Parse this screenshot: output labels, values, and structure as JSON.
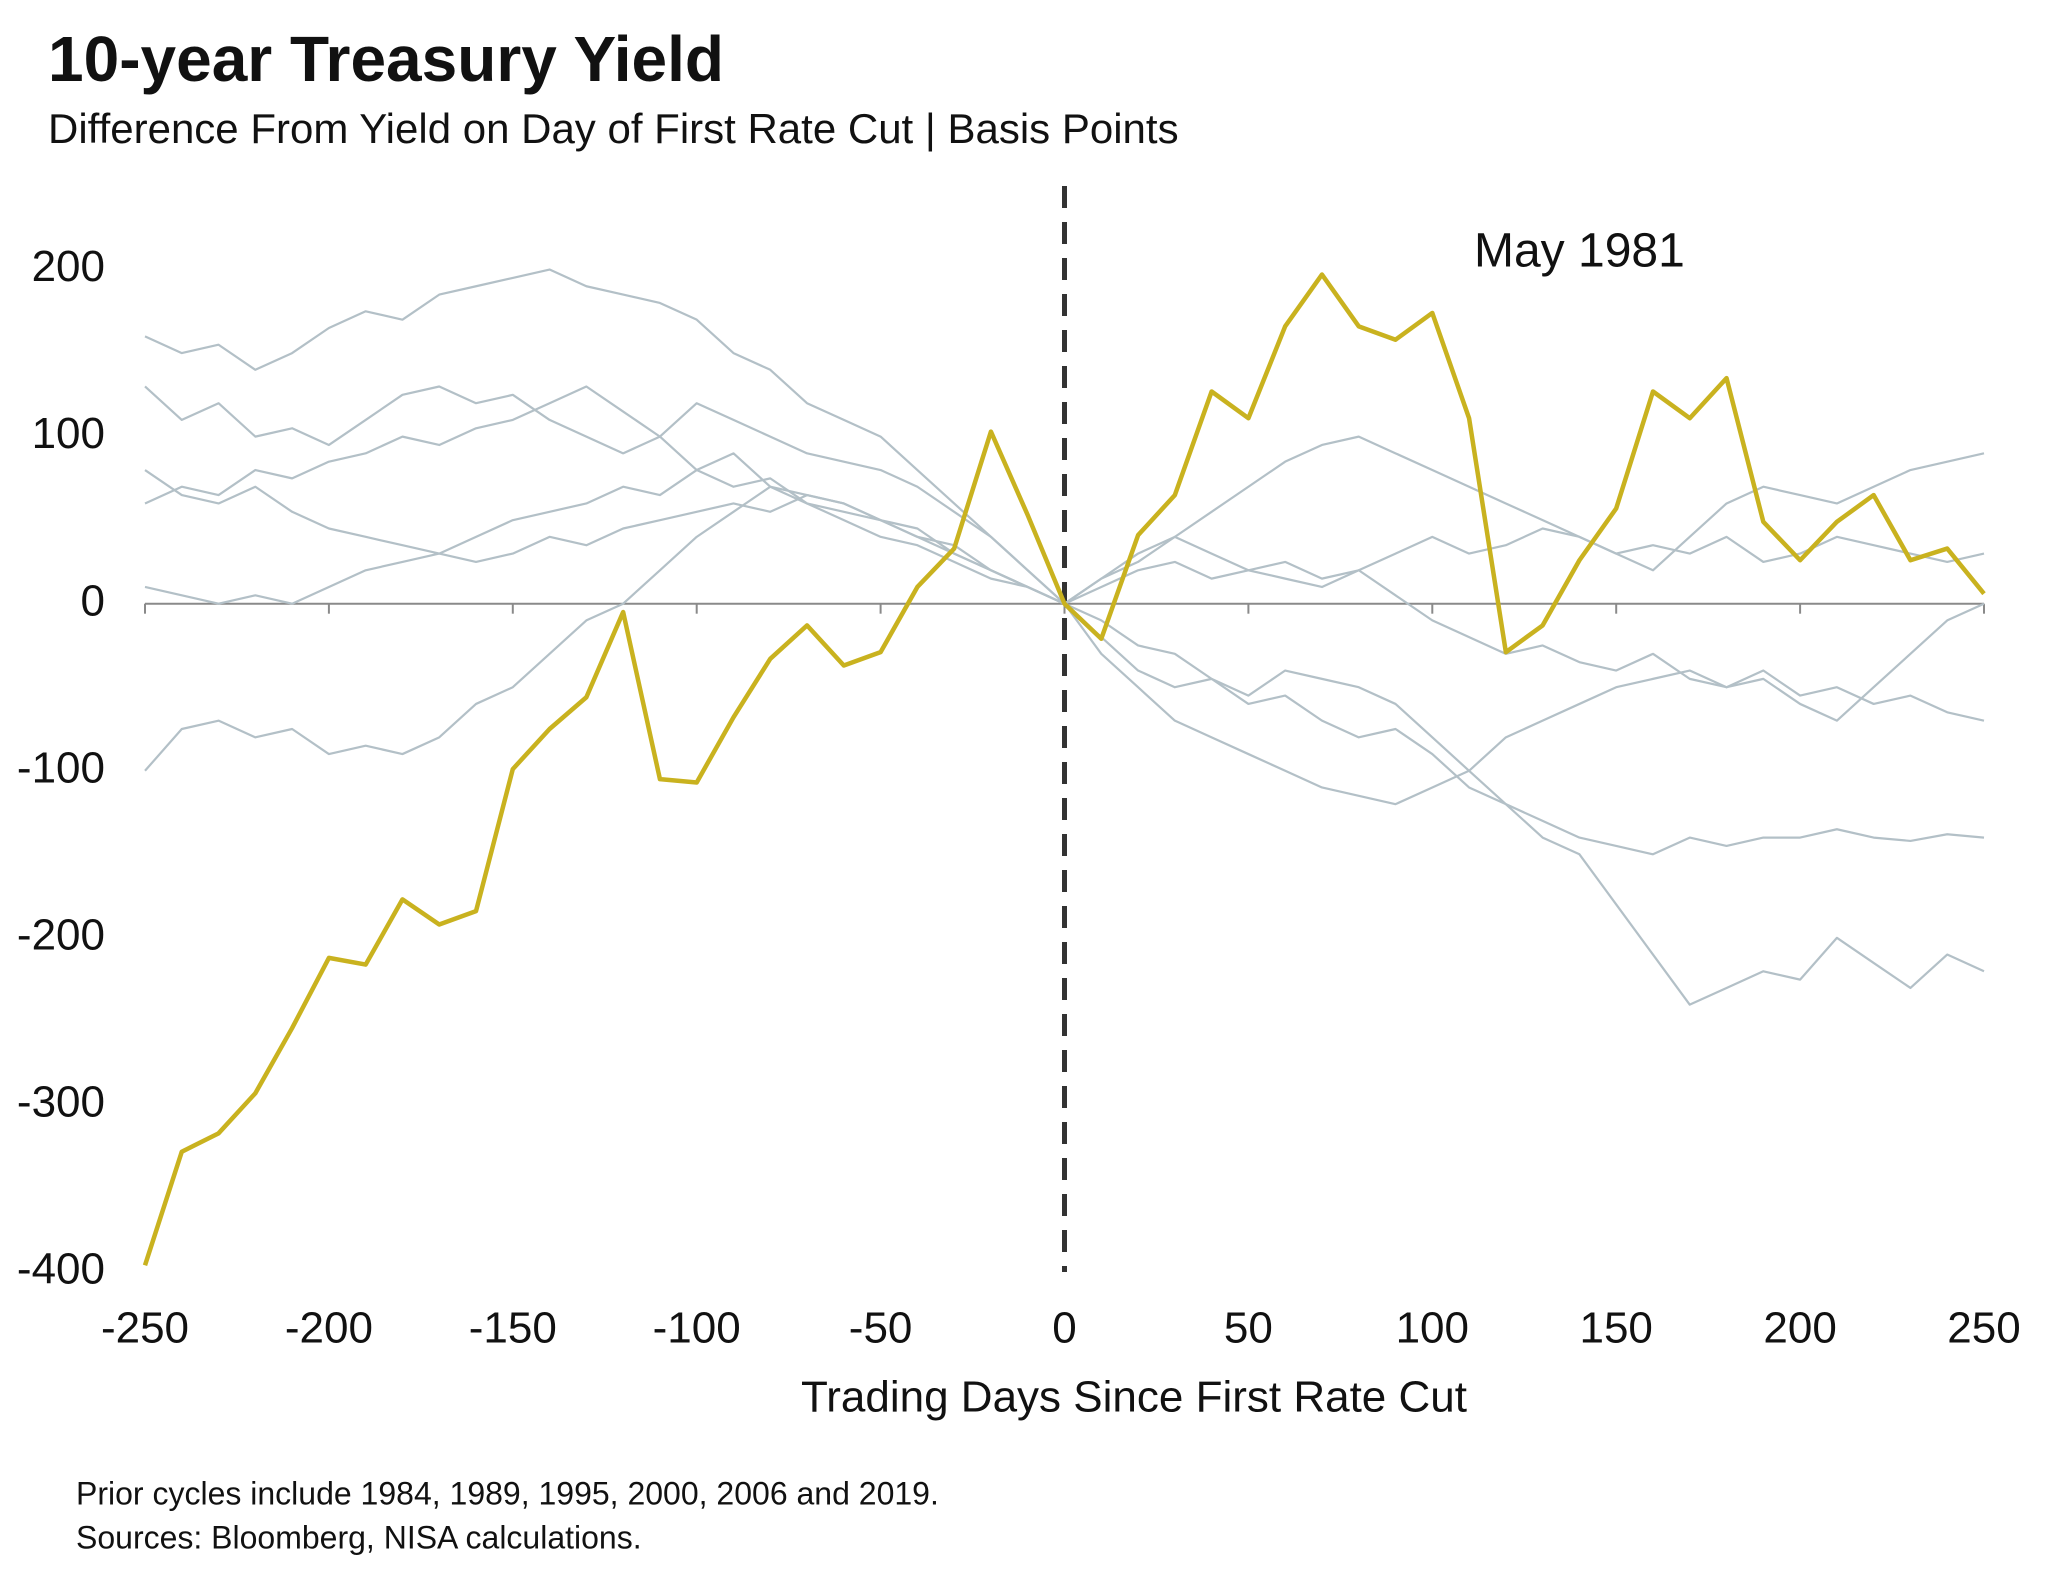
{
  "chart_data": {
    "type": "line",
    "title": "10-year Treasury Yield",
    "subtitle": "Difference From Yield on Day of First Rate Cut | Basis Points",
    "x_label": "Trading Days Since First Rate Cut",
    "x": [
      -250,
      -240,
      -230,
      -220,
      -210,
      -200,
      -190,
      -180,
      -170,
      -160,
      -150,
      -140,
      -130,
      -120,
      -110,
      -100,
      -90,
      -80,
      -70,
      -60,
      -50,
      -40,
      -30,
      -20,
      -10,
      0,
      10,
      20,
      30,
      40,
      50,
      60,
      70,
      80,
      90,
      100,
      110,
      120,
      130,
      140,
      150,
      160,
      170,
      180,
      190,
      200,
      210,
      220,
      230,
      240,
      250
    ],
    "xlim": [
      -250,
      250
    ],
    "xticks": [
      -250,
      -200,
      -150,
      -100,
      -50,
      0,
      50,
      100,
      150,
      200,
      250
    ],
    "ylim": [
      -400,
      250
    ],
    "yticks": [
      -400,
      -300,
      -200,
      -100,
      0,
      100,
      200
    ],
    "series": [
      {
        "color": "#b3c0c7",
        "values": [
          160,
          150,
          155,
          140,
          150,
          165,
          175,
          170,
          185,
          190,
          195,
          200,
          190,
          185,
          180,
          170,
          150,
          140,
          120,
          110,
          100,
          80,
          60,
          40,
          20,
          0,
          -10,
          -25,
          -30,
          -45,
          -60,
          -55,
          -70,
          -80,
          -75,
          -90,
          -110,
          -120,
          -130,
          -140,
          -145,
          -150,
          -140,
          -145,
          -140,
          -140,
          -135,
          -140,
          -142,
          -138,
          -140
        ]
      },
      {
        "color": "#b3c0c7",
        "values": [
          130,
          110,
          120,
          100,
          105,
          95,
          110,
          125,
          130,
          120,
          125,
          110,
          100,
          90,
          100,
          80,
          70,
          75,
          60,
          55,
          50,
          40,
          30,
          20,
          10,
          0,
          15,
          30,
          40,
          55,
          70,
          85,
          95,
          100,
          90,
          80,
          70,
          60,
          50,
          40,
          30,
          20,
          40,
          60,
          70,
          65,
          60,
          70,
          80,
          85,
          90
        ]
      },
      {
        "color": "#b3c0c7",
        "values": [
          60,
          70,
          65,
          80,
          75,
          85,
          90,
          100,
          95,
          105,
          110,
          120,
          130,
          115,
          100,
          120,
          110,
          100,
          90,
          85,
          80,
          70,
          55,
          40,
          20,
          0,
          -20,
          -40,
          -50,
          -45,
          -55,
          -40,
          -45,
          -50,
          -60,
          -80,
          -100,
          -120,
          -140,
          -150,
          -180,
          -210,
          -240,
          -230,
          -220,
          -225,
          -200,
          -215,
          -230,
          -210,
          -220
        ]
      },
      {
        "color": "#b3c0c7",
        "values": [
          -100,
          -75,
          -70,
          -80,
          -75,
          -90,
          -85,
          -90,
          -80,
          -60,
          -50,
          -30,
          -10,
          0,
          20,
          40,
          55,
          70,
          65,
          60,
          50,
          40,
          35,
          20,
          10,
          0,
          -30,
          -50,
          -70,
          -80,
          -90,
          -100,
          -110,
          -115,
          -120,
          -110,
          -100,
          -80,
          -70,
          -60,
          -50,
          -45,
          -40,
          -50,
          -45,
          -60,
          -70,
          -50,
          -30,
          -10,
          0
        ]
      },
      {
        "color": "#b3c0c7",
        "values": [
          10,
          5,
          0,
          5,
          0,
          10,
          20,
          25,
          30,
          25,
          30,
          40,
          35,
          45,
          50,
          55,
          60,
          55,
          65,
          60,
          50,
          45,
          30,
          20,
          10,
          0,
          10,
          20,
          25,
          15,
          20,
          15,
          10,
          20,
          5,
          -10,
          -20,
          -30,
          -25,
          -35,
          -40,
          -30,
          -45,
          -50,
          -40,
          -55,
          -50,
          -60,
          -55,
          -65,
          -70
        ]
      },
      {
        "color": "#b3c0c7",
        "values": [
          80,
          65,
          60,
          70,
          55,
          45,
          40,
          35,
          30,
          40,
          50,
          55,
          60,
          70,
          65,
          80,
          90,
          70,
          60,
          50,
          40,
          35,
          25,
          15,
          10,
          0,
          15,
          25,
          40,
          30,
          20,
          25,
          15,
          20,
          30,
          40,
          30,
          35,
          45,
          40,
          30,
          35,
          30,
          40,
          25,
          30,
          40,
          35,
          30,
          25,
          30
        ]
      },
      {
        "name": "May 1981",
        "color": "#c9b21f",
        "values": [
          -396,
          -328,
          -317,
          -293,
          -254,
          -212,
          -216,
          -177,
          -192,
          -184,
          -99,
          -75,
          -56,
          -5,
          -105,
          -107,
          -68,
          -33,
          -13,
          -37,
          -29,
          10,
          33,
          103,
          53,
          0,
          -21,
          41,
          65,
          127,
          111,
          166,
          197,
          166,
          158,
          174,
          111,
          -29,
          -13,
          26,
          57,
          127,
          111,
          135,
          49,
          26,
          49,
          65,
          26,
          33,
          6
        ]
      }
    ],
    "notes": [
      "Prior cycles include 1984, 1989, 1995, 2000, 2006 and 2019.",
      "Sources: Bloomberg, NISA calculations."
    ]
  }
}
